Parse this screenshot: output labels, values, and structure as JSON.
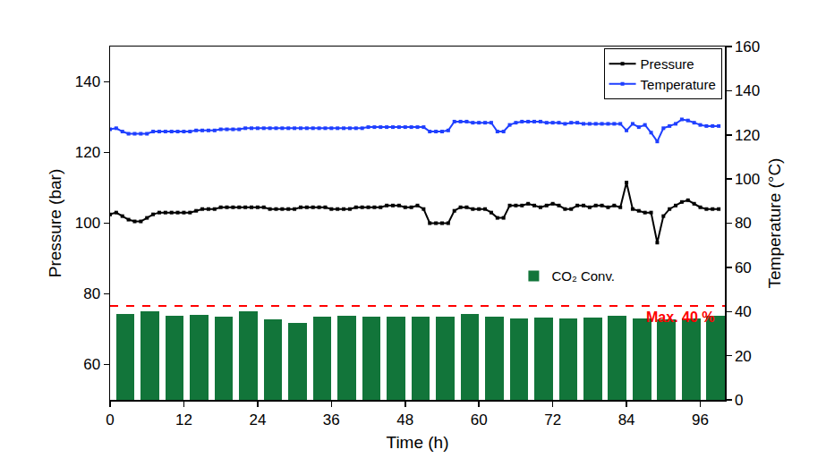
{
  "chart_data": {
    "type": "line",
    "x_label": "Time (h)",
    "y_label": "Pressure (bar)",
    "y2_label": "Temperature (°C)",
    "xlim": [
      0,
      100
    ],
    "xticks": [
      0,
      12,
      24,
      36,
      48,
      60,
      72,
      84,
      96
    ],
    "ylim": [
      50,
      150
    ],
    "yticks": [
      60,
      80,
      100,
      120,
      140
    ],
    "y2lim": [
      0,
      160
    ],
    "y2ticks": [
      0,
      20,
      40,
      60,
      80,
      100,
      120,
      140,
      160
    ],
    "grid": false,
    "legend": "top right",
    "series": [
      {
        "name": "CO₂ Conv.",
        "type": "bar",
        "axis": "y2",
        "color": "#12753a",
        "x": [
          2.5,
          6.5,
          10.5,
          14.5,
          18.5,
          22.5,
          26.5,
          30.5,
          34.5,
          38.5,
          42.5,
          46.5,
          50.5,
          54.5,
          58.5,
          62.5,
          66.5,
          70.5,
          74.5,
          78.5,
          82.5,
          86.5,
          90.5,
          94.5,
          98.5
        ],
        "values": [
          38.9,
          40.1,
          38.1,
          38.5,
          37.7,
          40.1,
          36.4,
          34.8,
          37.7,
          38.1,
          37.7,
          37.7,
          37.7,
          37.7,
          38.9,
          37.7,
          36.8,
          37.2,
          36.8,
          37.2,
          38.1,
          36.8,
          36.4,
          36.8,
          38.1
        ]
      },
      {
        "name": "Pressure",
        "type": "line",
        "color": "#000000",
        "marker": "square",
        "x": [
          0,
          1,
          2,
          3,
          4,
          5,
          6,
          7,
          8,
          9,
          10,
          11,
          12,
          13,
          14,
          15,
          16,
          17,
          18,
          19,
          20,
          21,
          22,
          23,
          24,
          25,
          26,
          27,
          28,
          29,
          30,
          31,
          32,
          33,
          34,
          35,
          36,
          37,
          38,
          39,
          40,
          41,
          42,
          43,
          44,
          45,
          46,
          47,
          48,
          49,
          50,
          51,
          52,
          53,
          54,
          55,
          56,
          57,
          58,
          59,
          60,
          61,
          62,
          63,
          64,
          65,
          66,
          67,
          68,
          69,
          70,
          71,
          72,
          73,
          74,
          75,
          76,
          77,
          78,
          79,
          80,
          81,
          82,
          83,
          84,
          85,
          86,
          87,
          88,
          89,
          90,
          91,
          92,
          93,
          94,
          95,
          96,
          97,
          98,
          99
        ],
        "values": [
          102.5,
          103,
          102,
          101,
          100.5,
          100.5,
          101.5,
          102.5,
          103,
          103,
          103,
          103,
          103,
          103,
          103.5,
          104,
          104,
          104,
          104.5,
          104.5,
          104.5,
          104.5,
          104.5,
          104.5,
          104.5,
          104.5,
          104,
          104,
          104,
          104,
          104,
          104.5,
          104.5,
          104.5,
          104.5,
          104.5,
          104,
          104,
          104,
          104,
          104.5,
          104.5,
          104.5,
          104.5,
          104.5,
          105,
          105,
          105,
          104.5,
          104.5,
          105,
          104,
          100,
          100,
          100,
          100,
          103.5,
          104.5,
          104.5,
          104,
          104,
          104,
          103,
          101.5,
          101.5,
          105,
          105,
          105,
          105.5,
          105,
          104.5,
          105,
          105.5,
          105,
          104,
          104,
          105,
          105,
          104.5,
          105,
          105,
          104.5,
          105,
          104.5,
          111.5,
          104,
          103.5,
          103,
          103,
          94.5,
          102,
          104,
          105,
          106,
          106.5,
          105.5,
          104.5,
          104,
          104,
          104
        ]
      },
      {
        "name": "Temperature",
        "type": "line",
        "axis": "y2",
        "color": "#1f3fff",
        "marker": "square",
        "x": [
          0,
          1,
          2,
          3,
          4,
          5,
          6,
          7,
          8,
          9,
          10,
          11,
          12,
          13,
          14,
          15,
          16,
          17,
          18,
          19,
          20,
          21,
          22,
          23,
          24,
          25,
          26,
          27,
          28,
          29,
          30,
          31,
          32,
          33,
          34,
          35,
          36,
          37,
          38,
          39,
          40,
          41,
          42,
          43,
          44,
          45,
          46,
          47,
          48,
          49,
          50,
          51,
          52,
          53,
          54,
          55,
          56,
          57,
          58,
          59,
          60,
          61,
          62,
          63,
          64,
          65,
          66,
          67,
          68,
          69,
          70,
          71,
          72,
          73,
          74,
          75,
          76,
          77,
          78,
          79,
          80,
          81,
          82,
          83,
          84,
          85,
          86,
          87,
          88,
          89,
          90,
          91,
          92,
          93,
          94,
          95,
          96,
          97,
          98,
          99
        ],
        "values": [
          122.5,
          123,
          121.5,
          120.5,
          120.5,
          120.5,
          120.5,
          121.5,
          121.5,
          121.5,
          121.5,
          121.5,
          121.5,
          121.5,
          122,
          122,
          122,
          122,
          122.5,
          122.5,
          122.5,
          122.5,
          123,
          123,
          123,
          123,
          123,
          123,
          123,
          123,
          123,
          123,
          123,
          123,
          123,
          123,
          123,
          123,
          123,
          123,
          123,
          123,
          123.5,
          123.5,
          123.5,
          123.5,
          123.5,
          123.5,
          123.5,
          123.5,
          123.5,
          123.5,
          121.5,
          121.5,
          121.5,
          122,
          126,
          126,
          126,
          125.5,
          125.5,
          125.5,
          125.5,
          121.5,
          121.5,
          124.5,
          125.5,
          126,
          126,
          126,
          126,
          125.5,
          125.5,
          125.5,
          125,
          125.5,
          125.5,
          125,
          125,
          125,
          125,
          125,
          125,
          125,
          122,
          125,
          123.5,
          124.5,
          121,
          117,
          123,
          124,
          125,
          127,
          126.5,
          125.5,
          124.5,
          124,
          124,
          124
        ]
      }
    ],
    "annotations": [
      {
        "text": "Max. 40 %",
        "y": 42.5,
        "axis": "y2",
        "color": "#ff0000",
        "line_style": "dash"
      }
    ]
  }
}
